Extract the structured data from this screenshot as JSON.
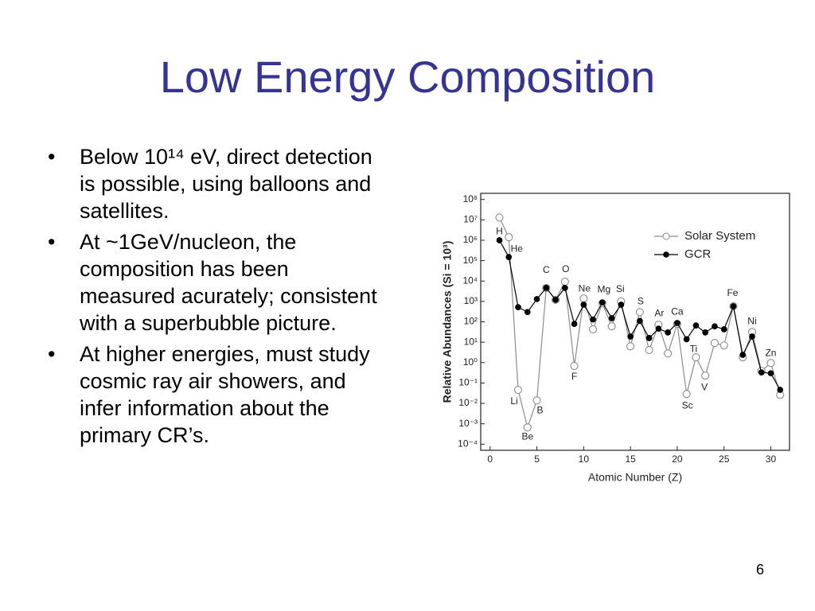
{
  "title": "Low Energy Composition",
  "bullets": [
    "Below 10¹⁴ eV, direct detection is possible, using balloons and satellites.",
    "At ~1GeV/nucleon, the composition has been measured acurately; consistent with a superbubble picture.",
    "At higher energies, must study cosmic ray air showers, and infer information about the primary CR’s."
  ],
  "page_number": "6",
  "chart_data": {
    "type": "line",
    "x_label": "Atomic Number (Z)",
    "y_label": "Relative Abundances (Si = 10³)",
    "x": [
      1,
      2,
      3,
      4,
      5,
      6,
      7,
      8,
      9,
      10,
      11,
      12,
      13,
      14,
      15,
      16,
      17,
      18,
      19,
      20,
      21,
      22,
      23,
      24,
      25,
      26,
      27,
      28,
      29,
      30,
      31
    ],
    "series": [
      {
        "name": "Solar System",
        "color": "#8c8c8c",
        "marker": "open",
        "values": [
          13000000,
          1400000,
          0.046,
          0.00066,
          0.014,
          4600,
          1200,
          9300,
          0.68,
          1400,
          43,
          810,
          60,
          1000,
          6.3,
          300,
          4.1,
          72,
          2.8,
          79,
          0.029,
          1.8,
          0.23,
          9.1,
          6.9,
          580,
          1.8,
          32,
          0.39,
          0.95,
          0.026
        ]
      },
      {
        "name": "GCR",
        "color": "#000000",
        "marker": "filled",
        "values": [
          1000000,
          150000,
          520,
          300,
          1300,
          4600,
          1200,
          4600,
          79,
          690,
          130,
          890,
          150,
          690,
          19,
          110,
          16,
          46,
          30,
          87,
          14,
          66,
          30,
          60,
          43,
          580,
          2.4,
          19,
          0.33,
          0.3,
          0.046
        ]
      }
    ],
    "annotations": [
      {
        "text": "H",
        "x": 1
      },
      {
        "text": "He",
        "x": 2
      },
      {
        "text": "Li",
        "x": 3
      },
      {
        "text": "Be",
        "x": 4
      },
      {
        "text": "B",
        "x": 5
      },
      {
        "text": "C",
        "x": 6
      },
      {
        "text": "O",
        "x": 8
      },
      {
        "text": "F",
        "x": 9
      },
      {
        "text": "Ne",
        "x": 10
      },
      {
        "text": "Mg",
        "x": 12
      },
      {
        "text": "Si",
        "x": 14
      },
      {
        "text": "S",
        "x": 16
      },
      {
        "text": "Ar",
        "x": 18
      },
      {
        "text": "Ca",
        "x": 20
      },
      {
        "text": "Sc",
        "x": 21
      },
      {
        "text": "Ti",
        "x": 22
      },
      {
        "text": "V",
        "x": 23
      },
      {
        "text": "Fe",
        "x": 26
      },
      {
        "text": "Ni",
        "x": 28
      },
      {
        "text": "Zn",
        "x": 30
      }
    ],
    "xlim": [
      -1,
      32
    ],
    "xticks": [
      0,
      5,
      10,
      15,
      20,
      25,
      30
    ],
    "ylim": [
      5e-05,
      200000000
    ],
    "y_scale": "log",
    "yticks": [
      {
        "value": 0.0001,
        "label": "10⁻⁴"
      },
      {
        "value": 0.001,
        "label": "10⁻³"
      },
      {
        "value": 0.01,
        "label": "10⁻²"
      },
      {
        "value": 0.1,
        "label": "10⁻¹"
      },
      {
        "value": 1,
        "label": "10⁰"
      },
      {
        "value": 10,
        "label": "10¹"
      },
      {
        "value": 100,
        "label": "10²"
      },
      {
        "value": 1000,
        "label": "10³"
      },
      {
        "value": 10000,
        "label": "10⁴"
      },
      {
        "value": 100000,
        "label": "10⁵"
      },
      {
        "value": 1000000,
        "label": "10⁶"
      },
      {
        "value": 10000000,
        "label": "10⁷"
      },
      {
        "value": 100000000,
        "label": "10⁸"
      }
    ],
    "grid": false,
    "legend": "upper right"
  }
}
